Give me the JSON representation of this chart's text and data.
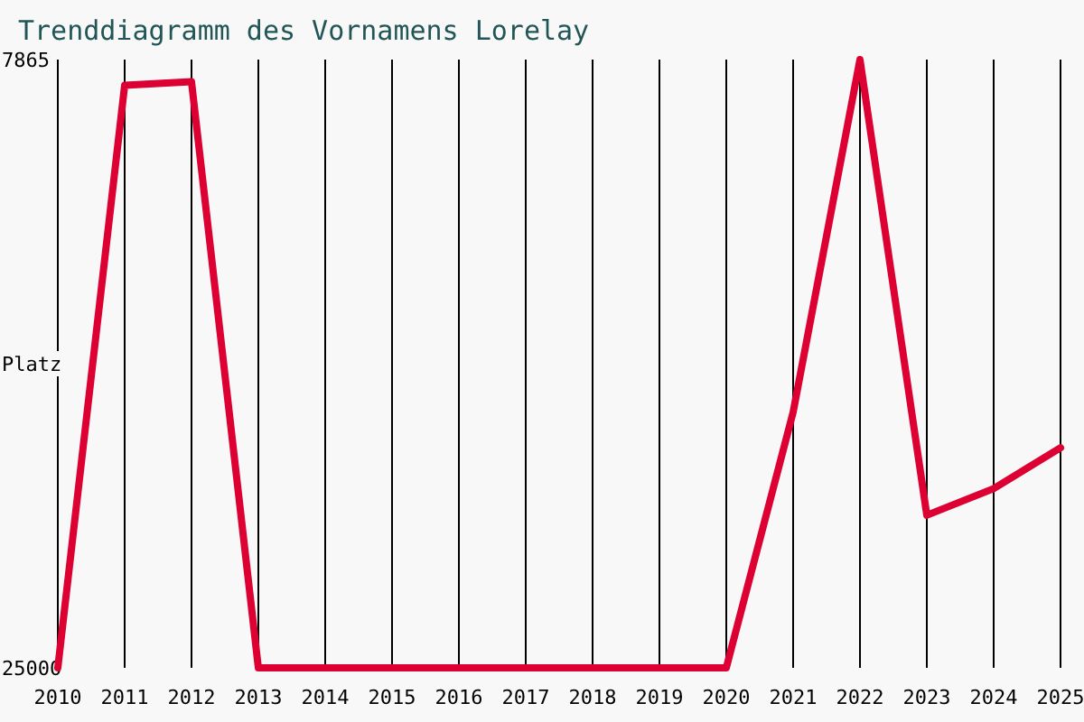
{
  "chart_data": {
    "type": "line",
    "title": "Trenddiagramm des Vornamens Lorelay",
    "ylabel": "Platz",
    "x": [
      2010,
      2011,
      2012,
      2013,
      2014,
      2015,
      2016,
      2017,
      2018,
      2019,
      2020,
      2021,
      2022,
      2023,
      2024,
      2025
    ],
    "series": [
      {
        "color": "#dd0033",
        "values": [
          25000,
          8590,
          8490,
          25000,
          25000,
          25000,
          25000,
          25000,
          25000,
          25000,
          25000,
          17800,
          7865,
          20700,
          19950,
          18800
        ]
      }
    ],
    "xlim": [
      2010,
      2025
    ],
    "xticks": [
      2010,
      2011,
      2012,
      2013,
      2014,
      2015,
      2016,
      2017,
      2018,
      2019,
      2020,
      2021,
      2022,
      2023,
      2024,
      2025
    ],
    "ylim": [
      25000,
      7865
    ],
    "yticks": [
      7865,
      25000
    ],
    "grid": "x",
    "marker": "none",
    "line_style": "solid"
  }
}
